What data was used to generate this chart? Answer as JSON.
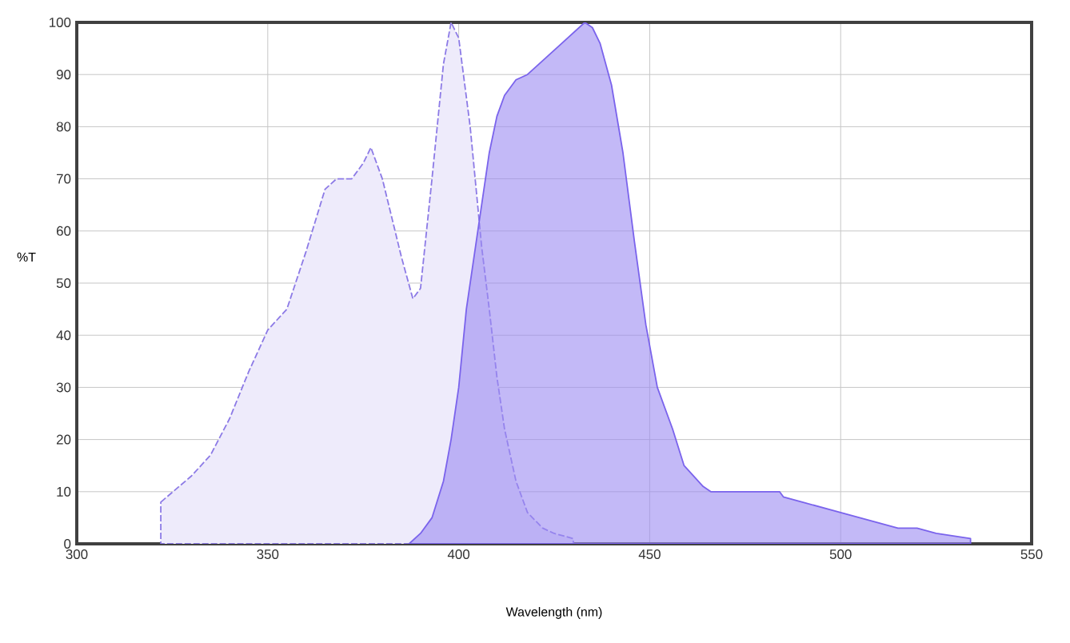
{
  "chart_data": {
    "type": "area",
    "xlabel": "Wavelength (nm)",
    "ylabel": "%T",
    "xlim": [
      300,
      550
    ],
    "xticks": [
      300,
      350,
      400,
      450,
      500,
      550
    ],
    "ylim": [
      0,
      100
    ],
    "yticks": [
      0,
      10,
      20,
      30,
      40,
      50,
      60,
      70,
      80,
      90,
      100
    ],
    "grid": true,
    "series": [
      {
        "color": "#8c7ae6",
        "line_style": "dashed",
        "x": [
          322,
          330,
          335,
          340,
          345,
          350,
          355,
          360,
          365,
          368,
          372,
          375,
          377,
          380,
          385,
          388,
          390,
          393,
          396,
          398,
          400,
          403,
          406,
          408,
          410,
          412,
          415,
          418,
          422,
          425,
          430
        ],
        "values": [
          8,
          13,
          17,
          24,
          33,
          41,
          45,
          56,
          68,
          70,
          70,
          73,
          76,
          70,
          55,
          47,
          49,
          70,
          92,
          100,
          97,
          80,
          57,
          45,
          32,
          22,
          12,
          6,
          3,
          2,
          1
        ]
      },
      {
        "color": "#7a63ec",
        "line_style": "solid",
        "x": [
          387,
          390,
          393,
          396,
          398,
          400,
          402,
          404,
          406,
          408,
          410,
          412,
          415,
          418,
          421,
          424,
          427,
          430,
          433,
          435,
          437,
          440,
          443,
          446,
          449,
          452,
          456,
          459,
          464,
          466,
          484,
          485,
          490,
          495,
          500,
          505,
          510,
          515,
          520,
          525,
          534
        ],
        "values": [
          0,
          2,
          5,
          12,
          20,
          30,
          45,
          55,
          65,
          75,
          82,
          86,
          89,
          90,
          92,
          94,
          96,
          98,
          100,
          99,
          96,
          88,
          75,
          58,
          42,
          30,
          22,
          15,
          11,
          10,
          10,
          9,
          8,
          7,
          6,
          5,
          4,
          3,
          3,
          2,
          1
        ]
      }
    ]
  }
}
